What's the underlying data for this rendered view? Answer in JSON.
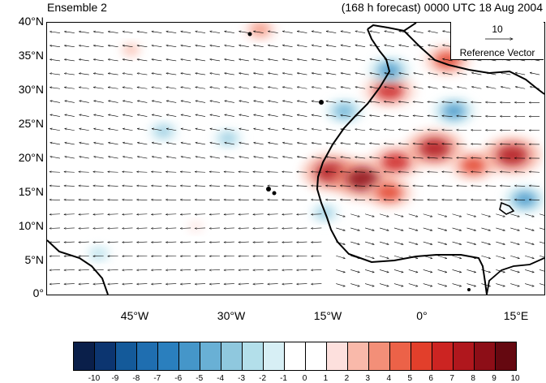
{
  "title_left": "Ensemble 2",
  "title_right": "(168 h forecast) 0000 UTC 18 Aug 2004",
  "reference": {
    "magnitude": "10",
    "label": "Reference Vector"
  },
  "axes": {
    "y_labels": [
      "40°N",
      "35°N",
      "30°N",
      "25°N",
      "20°N",
      "15°N",
      "10°N",
      "5°N",
      "0°"
    ],
    "x_labels": [
      "45°W",
      "30°W",
      "15°W",
      "0°",
      "15°E"
    ],
    "lon_range": [
      -58,
      19
    ],
    "lat_range": [
      0,
      40
    ]
  },
  "colorbar": {
    "labels": [
      "-10",
      "-9",
      "-8",
      "-7",
      "-6",
      "-5",
      "-4",
      "-3",
      "-2",
      "-1",
      "0",
      "1",
      "2",
      "3",
      "4",
      "5",
      "6",
      "7",
      "8",
      "9",
      "10"
    ],
    "colors": [
      "#0a1f4a",
      "#0c3570",
      "#145a9a",
      "#1f6eb0",
      "#2a7fbe",
      "#4596c9",
      "#69b0d5",
      "#8fc8de",
      "#b3dfea",
      "#d7eff5",
      "#ffffff",
      "#ffffff",
      "#fde0dd",
      "#f9b9aa",
      "#f38f78",
      "#ec6248",
      "#e23f2b",
      "#cc2422",
      "#b0171d",
      "#8d0e17",
      "#650810"
    ]
  },
  "anomaly_field": {
    "type": "heatmap",
    "units": "shaded anomaly",
    "features": [
      {
        "lon": -5,
        "lat": 30,
        "value": 7
      },
      {
        "lon": -14,
        "lat": 18,
        "value": 8
      },
      {
        "lon": -9,
        "lat": 17,
        "value": 9
      },
      {
        "lon": -4,
        "lat": 19.5,
        "value": 7
      },
      {
        "lon": 2,
        "lat": 21.5,
        "value": 8
      },
      {
        "lon": 8,
        "lat": 19,
        "value": 6
      },
      {
        "lon": 14,
        "lat": 20.5,
        "value": 8
      },
      {
        "lon": 4,
        "lat": 34.5,
        "value": 6
      },
      {
        "lon": -5,
        "lat": 15,
        "value": 6
      },
      {
        "lon": -45,
        "lat": 36,
        "value": 3
      },
      {
        "lon": -25,
        "lat": 39,
        "value": 4
      },
      {
        "lon": -35,
        "lat": 10,
        "value": 2
      },
      {
        "lon": -5,
        "lat": 33,
        "value": -5
      },
      {
        "lon": 5,
        "lat": 27,
        "value": -5
      },
      {
        "lon": -40,
        "lat": 24,
        "value": -3
      },
      {
        "lon": -30,
        "lat": 23,
        "value": -3
      },
      {
        "lon": -12,
        "lat": 27,
        "value": -4
      },
      {
        "lon": 16,
        "lat": 14,
        "value": -5
      },
      {
        "lon": -15,
        "lat": 12,
        "value": -3
      },
      {
        "lon": -50,
        "lat": 6,
        "value": -2
      }
    ]
  }
}
